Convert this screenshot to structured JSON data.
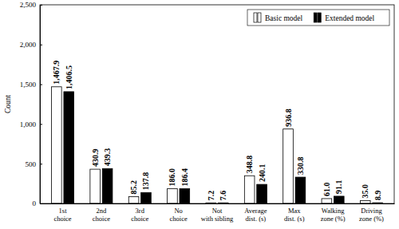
{
  "chart_data": {
    "type": "bar",
    "y_label": "Count",
    "categories": [
      "1st choice",
      "2nd choice",
      "3rd choice",
      "No choice",
      "Not with sibling",
      "Average dist. (s)",
      "Max dist. (s)",
      "Walking zone (%)",
      "Driving zone (%)"
    ],
    "series": [
      {
        "name": "Basic model",
        "color": "#ffffff",
        "values": [
          1467.9,
          430.9,
          85.2,
          186.0,
          7.2,
          348.8,
          936.8,
          61.0,
          35.0
        ],
        "value_labels": [
          "1,467.9",
          "430.9",
          "85.2",
          "186.0",
          "7.2",
          "348.8",
          "936.8",
          "61.0",
          "35.0"
        ]
      },
      {
        "name": "Extended model",
        "color": "#000000",
        "values": [
          1406.5,
          439.3,
          137.8,
          186.4,
          7.6,
          240.1,
          330.8,
          91.1,
          8.9
        ],
        "value_labels": [
          "1,406.5",
          "439.3",
          "137.8",
          "186.4",
          "7.6",
          "240.1",
          "330.8",
          "91.1",
          "8.9"
        ]
      }
    ],
    "ylim": [
      0,
      2500
    ],
    "yticks": [
      0,
      500,
      {
        "value": 1000,
        "label": "1,000"
      },
      {
        "value": 1500,
        "label": "1,500"
      },
      {
        "value": 2000,
        "label": "2,000"
      },
      {
        "value": 2500,
        "label": "2,500"
      }
    ],
    "grid": false,
    "legend": "top-right",
    "data_labels": true
  }
}
